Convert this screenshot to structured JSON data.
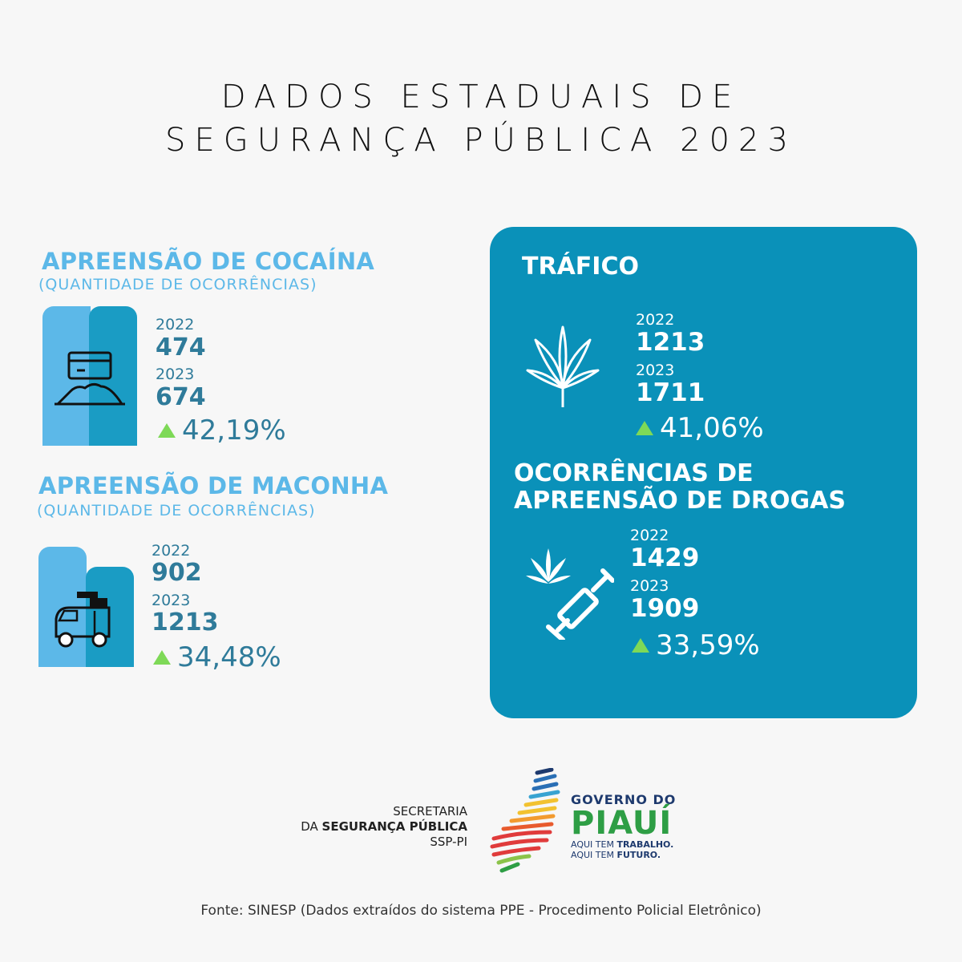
{
  "title": {
    "line1": "DADOS ESTADUAIS DE",
    "line2": "SEGURANÇA PÚBLICA 2023"
  },
  "cocaina": {
    "title": "APREENSÃO DE COCAÍNA",
    "subtitle": "(QUANTIDADE DE OCORRÊNCIAS)",
    "year1": "2022",
    "value1": "474",
    "year2": "2023",
    "value2": "674",
    "change": "42,19%",
    "icon": "cocaine-icon"
  },
  "maconha": {
    "title": "APREENSÃO DE MACONHA",
    "subtitle": "(QUANTIDADE DE OCORRÊNCIAS)",
    "year1": "2022",
    "value1": "902",
    "year2": "2023",
    "value2": "1213",
    "change": "34,48%",
    "icon": "police-van-icon"
  },
  "trafico": {
    "title": "TRÁFICO",
    "year1": "2022",
    "value1": "1213",
    "year2": "2023",
    "value2": "1711",
    "change": "41,06%",
    "icon": "cannabis-leaf-icon"
  },
  "drogas": {
    "title_line1": "OCORRÊNCIAS DE",
    "title_line2": "APREENSÃO DE DROGAS",
    "year1": "2022",
    "value1": "1429",
    "year2": "2023",
    "value2": "1909",
    "change": "33,59%",
    "icon": "leaf-syringe-icon"
  },
  "logos": {
    "ssp_line1": "SECRETARIA",
    "ssp_line2_prefix": "DA ",
    "ssp_line2_bold": "SEGURANÇA PÚBLICA",
    "ssp_line3": "SSP-PI",
    "gov_line1": "GOVERNO DO",
    "gov_line2": "PIAUÍ",
    "gov_line3a_prefix": "AQUI TEM ",
    "gov_line3a_bold": "TRABALHO.",
    "gov_line3b_prefix": "AQUI TEM ",
    "gov_line3b_bold": "FUTURO."
  },
  "footer": "Fonte: SINESP (Dados extraídos do sistema PPE - Procedimento Policial Eletrônico)",
  "colors": {
    "light_blue": "#5cb8e8",
    "dark_blue_bar": "#1a9cc4",
    "panel": "#0a91b9",
    "text_blue": "#2f7b9a",
    "up_arrow": "#7ed957"
  }
}
